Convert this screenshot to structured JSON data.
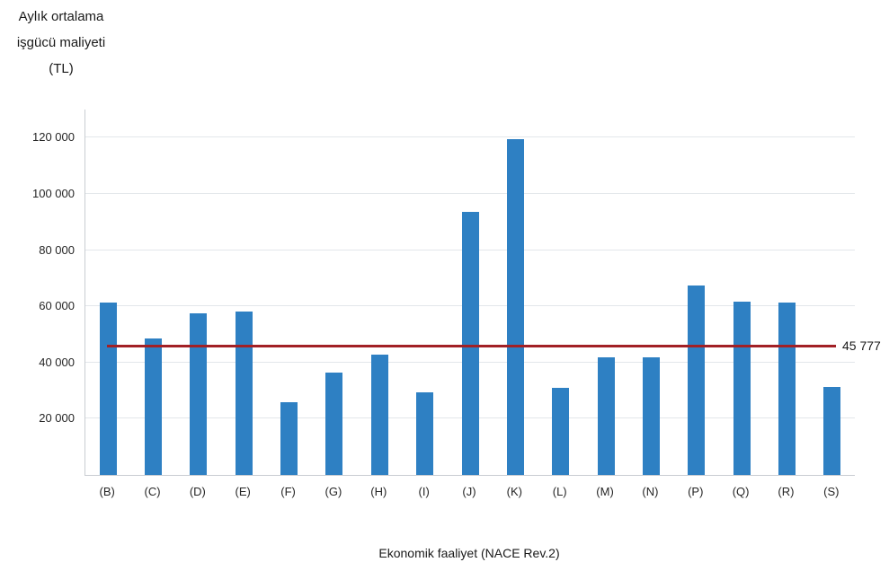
{
  "chart_data": {
    "type": "bar",
    "y_axis_title": [
      "Aylık ortalama",
      "işgücü maliyeti",
      "(TL)"
    ],
    "xlabel": "Ekonomik faaliyet (NACE Rev.2)",
    "categories": [
      "(B)",
      "(C)",
      "(D)",
      "(E)",
      "(F)",
      "(G)",
      "(H)",
      "(I)",
      "(J)",
      "(K)",
      "(L)",
      "(M)",
      "(N)",
      "(P)",
      "(Q)",
      "(R)",
      "(S)"
    ],
    "values": [
      61400,
      48600,
      57500,
      58200,
      26000,
      36500,
      42800,
      29500,
      93600,
      119400,
      31000,
      41700,
      41700,
      67400,
      61800,
      61200,
      31300
    ],
    "y_ticks": [
      {
        "value": 20000,
        "label": "20 000"
      },
      {
        "value": 40000,
        "label": "40 000"
      },
      {
        "value": 60000,
        "label": "60 000"
      },
      {
        "value": 80000,
        "label": "80 000"
      },
      {
        "value": 100000,
        "label": "100 000"
      },
      {
        "value": 120000,
        "label": "120 000"
      }
    ],
    "ylim": [
      0,
      130000
    ],
    "grid": true,
    "legend": "none",
    "bar_color": "#2e80c3",
    "ref_line": {
      "value": 45777,
      "label": "45 777",
      "color": "#a22025"
    }
  }
}
